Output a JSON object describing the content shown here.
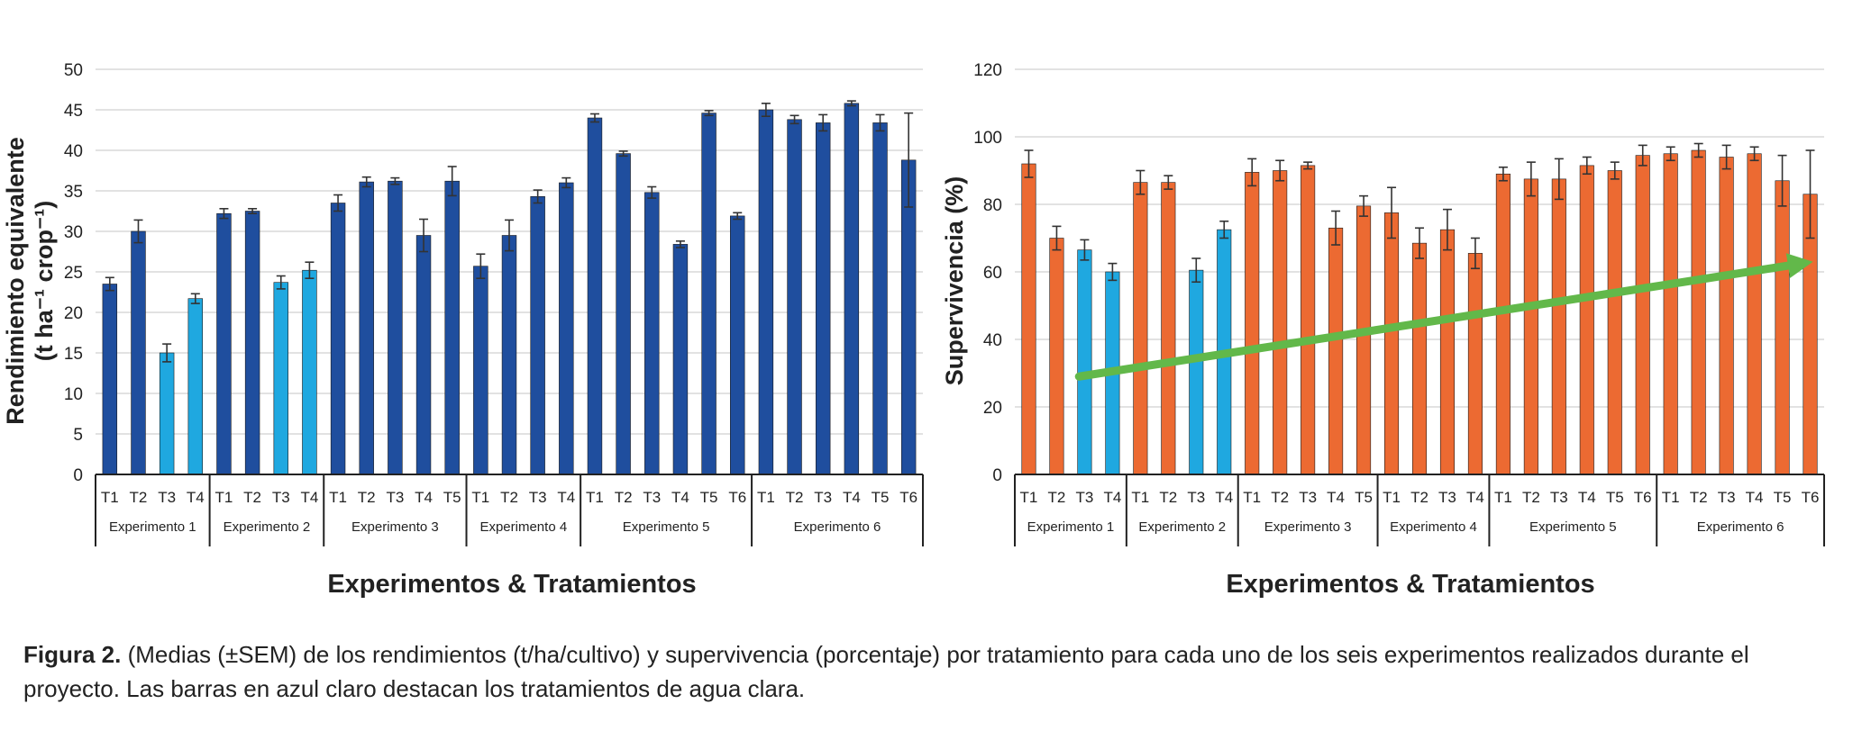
{
  "chart_data": [
    {
      "type": "bar",
      "ylabel_line1": "Rendimiento equivalente",
      "ylabel_line2": "(t ha⁻¹ crop⁻¹)",
      "xlabel": "Experimentos & Tratamientos",
      "ylim": [
        0,
        50
      ],
      "yticks": [
        0,
        5,
        10,
        15,
        20,
        25,
        30,
        35,
        40,
        45,
        50
      ],
      "grid": true,
      "groups": [
        {
          "name": "Experimento 1",
          "categories": [
            "T1",
            "T2",
            "T3",
            "T4"
          ],
          "values": [
            23.5,
            30,
            15,
            21.7
          ],
          "errors": [
            0.8,
            1.4,
            1.1,
            0.6
          ],
          "highlight": [
            false,
            false,
            true,
            true
          ]
        },
        {
          "name": "Experimento 2",
          "categories": [
            "T1",
            "T2",
            "T3",
            "T4"
          ],
          "values": [
            32.2,
            32.5,
            23.7,
            25.2
          ],
          "errors": [
            0.6,
            0.3,
            0.8,
            1.0
          ],
          "highlight": [
            false,
            false,
            true,
            true
          ]
        },
        {
          "name": "Experimento 3",
          "categories": [
            "T1",
            "T2",
            "T3",
            "T4",
            "T5"
          ],
          "values": [
            33.5,
            36.1,
            36.2,
            29.5,
            36.2
          ],
          "errors": [
            1.0,
            0.6,
            0.4,
            2.0,
            1.8
          ],
          "highlight": [
            false,
            false,
            false,
            false,
            false
          ]
        },
        {
          "name": "Experimento 4",
          "categories": [
            "T1",
            "T2",
            "T3",
            "T4"
          ],
          "values": [
            25.7,
            29.5,
            34.3,
            36
          ],
          "errors": [
            1.5,
            1.9,
            0.8,
            0.6
          ],
          "highlight": [
            false,
            false,
            false,
            false
          ]
        },
        {
          "name": "Experimento  5",
          "categories": [
            "T1",
            "T2",
            "T3",
            "T4",
            "T5",
            "T6"
          ],
          "values": [
            44,
            39.6,
            34.8,
            28.4,
            44.6,
            31.9
          ],
          "errors": [
            0.5,
            0.3,
            0.7,
            0.4,
            0.3,
            0.4
          ],
          "highlight": [
            false,
            false,
            false,
            false,
            false,
            false
          ]
        },
        {
          "name": "Experimento 6",
          "categories": [
            "T1",
            "T2",
            "T3",
            "T4",
            "T5",
            "T6"
          ],
          "values": [
            45,
            43.8,
            43.4,
            45.8,
            43.4,
            38.8
          ],
          "errors": [
            0.8,
            0.5,
            1.0,
            0.3,
            1.0,
            5.8
          ],
          "highlight": [
            false,
            false,
            false,
            false,
            false,
            false
          ]
        }
      ]
    },
    {
      "type": "bar",
      "ylabel": "Supervivencia (%)",
      "xlabel": "Experimentos & Tratamientos",
      "ylim": [
        0,
        120
      ],
      "yticks": [
        0,
        20,
        40,
        60,
        80,
        100,
        120
      ],
      "grid": true,
      "trend_arrow": {
        "from_value": 29,
        "to_value": 63
      },
      "groups": [
        {
          "name": "Experimento 1",
          "categories": [
            "T1",
            "T2",
            "T3",
            "T4"
          ],
          "values": [
            92,
            70,
            66.5,
            60
          ],
          "errors": [
            4,
            3.5,
            3,
            2.5
          ],
          "highlight": [
            false,
            false,
            true,
            true
          ]
        },
        {
          "name": "Experimento 2",
          "categories": [
            "T1",
            "T2",
            "T3",
            "T4"
          ],
          "values": [
            86.5,
            86.5,
            60.5,
            72.5
          ],
          "errors": [
            3.5,
            2,
            3.5,
            2.5
          ],
          "highlight": [
            false,
            false,
            true,
            true
          ]
        },
        {
          "name": "Experimento 3",
          "categories": [
            "T1",
            "T2",
            "T3",
            "T4",
            "T5"
          ],
          "values": [
            89.5,
            90,
            91.5,
            73,
            79.5
          ],
          "errors": [
            4,
            3,
            1,
            5,
            3
          ],
          "highlight": [
            false,
            false,
            false,
            false,
            false
          ]
        },
        {
          "name": "Experimento 4",
          "categories": [
            "T1",
            "T2",
            "T3",
            "T4"
          ],
          "values": [
            77.5,
            68.5,
            72.5,
            65.5
          ],
          "errors": [
            7.5,
            4.5,
            6,
            4.5
          ],
          "highlight": [
            false,
            false,
            false,
            false
          ]
        },
        {
          "name": "Experimento  5",
          "categories": [
            "T1",
            "T2",
            "T3",
            "T4",
            "T5",
            "T6"
          ],
          "values": [
            89,
            87.5,
            87.5,
            91.5,
            90,
            94.5
          ],
          "errors": [
            2,
            5,
            6,
            2.5,
            2.5,
            3
          ],
          "highlight": [
            false,
            false,
            false,
            false,
            false,
            false
          ]
        },
        {
          "name": "Experimento 6",
          "categories": [
            "T1",
            "T2",
            "T3",
            "T4",
            "T5",
            "T6"
          ],
          "values": [
            95,
            96,
            94,
            95,
            87,
            83
          ],
          "errors": [
            2,
            2,
            3.5,
            2,
            7.5,
            13
          ],
          "highlight": [
            false,
            false,
            false,
            false,
            false,
            false
          ]
        }
      ]
    }
  ],
  "colors": {
    "yield_bar": "#1f4e9e",
    "survival_bar": "#ec6a32",
    "clear_water_bar": "#1fa8e0",
    "trend_arrow": "#62b84a",
    "grid": "#d9d9d9",
    "axis": "#222222"
  },
  "caption": {
    "label": "Figura 2.",
    "text": " (Medias (±SEM) de los rendimientos (t/ha/cultivo) y supervivencia (porcentaje) por tratamiento para cada uno de los seis experimentos realizados durante el proyecto. Las barras en azul claro destacan los tratamientos de agua clara."
  }
}
